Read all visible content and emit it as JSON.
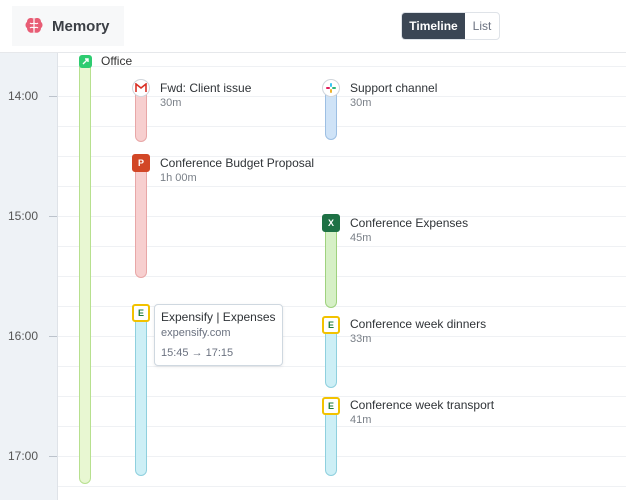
{
  "app": {
    "name": "Memory",
    "brand_icon": "brain-icon",
    "brand_color": "#e85d75"
  },
  "view_toggle": {
    "timeline_label": "Timeline",
    "list_label": "List",
    "active": "Timeline"
  },
  "hours": [
    "14:00",
    "15:00",
    "16:00",
    "17:00"
  ],
  "office": {
    "label": "Office",
    "icon": "office-app-icon"
  },
  "events": [
    {
      "title": "Fwd: Client issue",
      "duration": "30m",
      "icon": "gmail-icon"
    },
    {
      "title": "Support channel",
      "duration": "30m",
      "icon": "slack-icon"
    },
    {
      "title": "Conference Budget Proposal",
      "duration": "1h 00m",
      "icon": "powerpoint-icon"
    },
    {
      "title": "Conference Expenses",
      "duration": "45m",
      "icon": "excel-icon"
    },
    {
      "title": "Conference week dinners",
      "duration": "33m",
      "icon": "expensify-icon"
    },
    {
      "title": "Conference week transport",
      "duration": "41m",
      "icon": "expensify-icon"
    }
  ],
  "popup": {
    "title": "Expensify | Expenses",
    "site": "expensify.com",
    "time_range": "15:45 → 17:15"
  }
}
